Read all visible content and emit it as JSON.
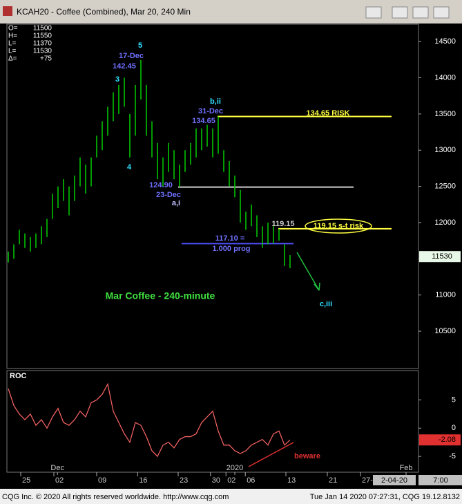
{
  "window": {
    "title": "KCAH20 - Coffee (Combined), Mar 20, 240 Min",
    "readout": [
      [
        "O=",
        "11500"
      ],
      [
        "H=",
        "11550"
      ],
      [
        "L=",
        "11370"
      ],
      [
        "L=",
        "11530"
      ],
      [
        "Δ=",
        "+75"
      ]
    ],
    "footer_left": "CQG Inc. © 2020 All rights reserved worldwide. http://www.cqg.com",
    "footer_right": "Tue Jan 14 2020 07:27:31, CQG 19.12.8132",
    "date_box": "2-04-20",
    "time_box": "7:00"
  },
  "chart_data": [
    {
      "type": "range_bar",
      "color": "#00d000",
      "high": [
        11600,
        11700,
        11900,
        11850,
        11800,
        11850,
        11950,
        12050,
        12400,
        12500,
        12600,
        12500,
        12650,
        12900,
        12800,
        12900,
        13200,
        13400,
        13600,
        13800,
        13900,
        14000,
        13500,
        13900,
        14245,
        13900,
        13400,
        13100,
        12900,
        13100,
        13000,
        12800,
        13000,
        13100,
        13300,
        13300,
        13350,
        13300,
        13465,
        13000,
        12850,
        12650,
        12450,
        12150,
        12250,
        12100,
        11950,
        12000,
        11950,
        11915,
        11700,
        11550
      ],
      "low": [
        11450,
        11500,
        11700,
        11650,
        11600,
        11650,
        11700,
        11800,
        12050,
        12200,
        12300,
        12100,
        12300,
        12500,
        12400,
        12500,
        12900,
        13000,
        13200,
        13400,
        13500,
        13600,
        12900,
        13200,
        13700,
        13200,
        12900,
        12600,
        12500,
        12700,
        12600,
        12490,
        12700,
        12800,
        12900,
        13000,
        13050,
        12900,
        12950,
        12700,
        12500,
        12350,
        12000,
        11900,
        11950,
        11800,
        11650,
        11700,
        11710,
        11750,
        11400,
        11370
      ],
      "last": 11530,
      "ylim": [
        9985,
        14740
      ],
      "yticks": [
        14500,
        14000,
        13500,
        13000,
        12500,
        12000,
        11500,
        11000,
        10500
      ],
      "xlim": [
        -0.25,
        74.25
      ],
      "xticks": [
        {
          "value": 2.25,
          "label": "25"
        },
        {
          "value": 8.25,
          "label": "02"
        },
        {
          "value": 16,
          "label": "09"
        },
        {
          "value": 23.4,
          "label": "16"
        },
        {
          "value": 30.75,
          "label": "23"
        },
        {
          "value": 36.6,
          "label": "30"
        },
        {
          "value": 39.4,
          "label": "02"
        },
        {
          "value": 42.9,
          "label": "06"
        },
        {
          "value": 50.25,
          "label": "13"
        },
        {
          "value": 57.75,
          "label": "21"
        },
        {
          "value": 63.75,
          "label": "27-"
        }
      ],
      "xmajor": [
        {
          "value": 8.9,
          "label": "Dec"
        },
        {
          "value": 41,
          "label": "2020"
        },
        {
          "value": 72,
          "label": "Feb"
        }
      ],
      "levels": [
        {
          "value": 13465,
          "color": "#ffff40"
        },
        {
          "value": 12490,
          "color": "#d0d0d0"
        },
        {
          "value": 11915,
          "color": "#ffff40"
        },
        {
          "value": 11710,
          "color": "#5050ff"
        }
      ],
      "annotations": [
        "5",
        "17-Dec",
        "142.45",
        "3",
        "4",
        "b,ii",
        "31-Dec",
        "134.65",
        "134.65 RISK",
        "124.90",
        "23-Dec",
        "a,i",
        "119.15",
        "119.15 s-t risk",
        "117.10 =",
        "1.000 prog",
        "Mar Coffee - 240-minute",
        "c,iii"
      ]
    },
    {
      "type": "line",
      "title": "ROC",
      "color": "#f06060",
      "values": [
        7,
        4,
        2.5,
        1.5,
        2.5,
        0.5,
        1.5,
        0,
        2,
        3.5,
        1,
        0.5,
        1.5,
        3,
        2,
        4.5,
        5,
        6,
        7.8,
        3,
        1,
        -1,
        -2.5,
        1,
        0.5,
        -1.5,
        -4,
        -5,
        -3,
        -2.5,
        -3.5,
        -2,
        -1.5,
        -1.5,
        -1,
        1,
        2,
        3,
        -0.5,
        -3,
        -3,
        -4,
        -4.5,
        -4,
        -3,
        -2.5,
        -2,
        -3,
        -1,
        -0.5,
        -3,
        -2.08
      ],
      "ylim": [
        -7.8,
        10.2
      ],
      "yticks": [
        5,
        0,
        -5
      ],
      "annotations": [
        "beware"
      ]
    }
  ]
}
